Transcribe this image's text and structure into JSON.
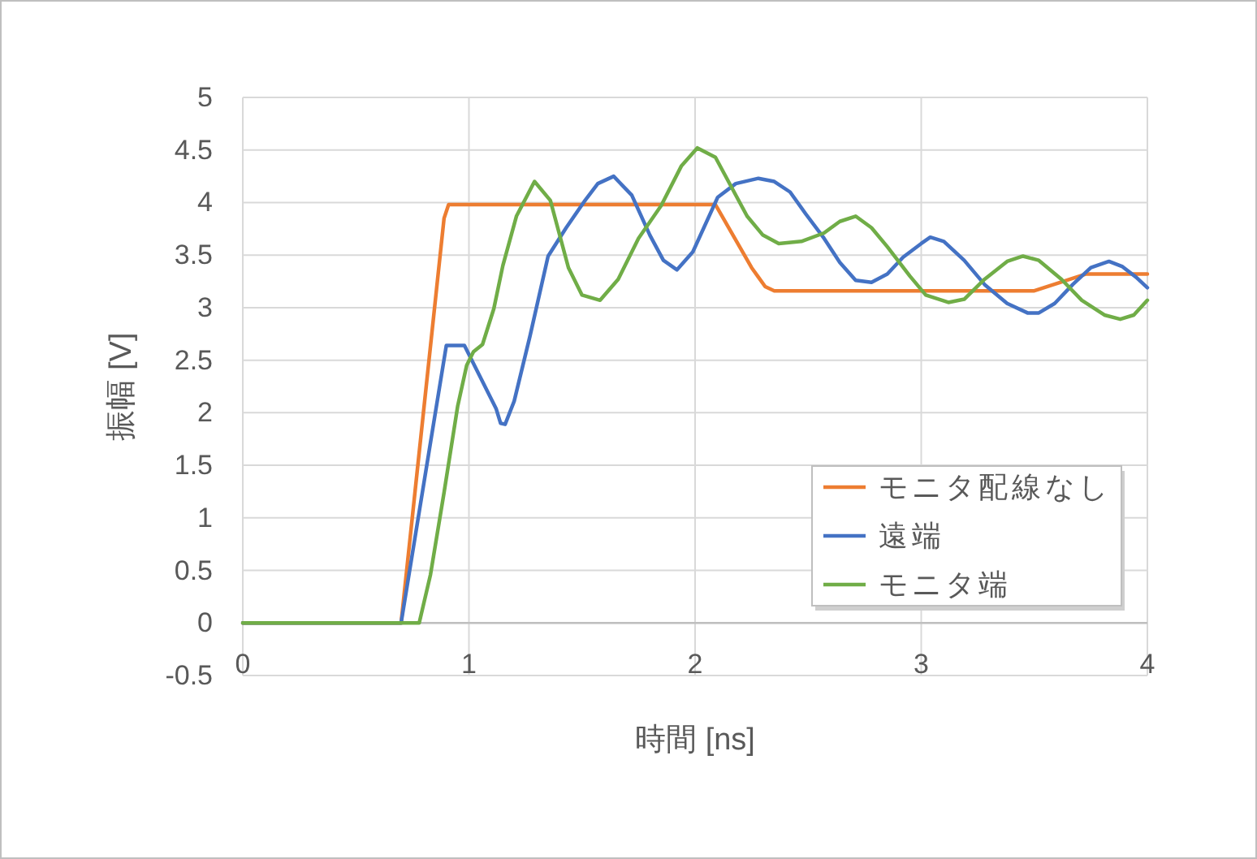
{
  "chart_data": {
    "type": "line",
    "xlabel": "時間 [ns]",
    "ylabel": "振幅 [V]",
    "xlim": [
      0,
      4
    ],
    "ylim": [
      -0.5,
      5
    ],
    "xticks": [
      0,
      1,
      2,
      3,
      4
    ],
    "yticks": [
      -0.5,
      0,
      0.5,
      1,
      1.5,
      2,
      2.5,
      3,
      3.5,
      4,
      4.5,
      5
    ],
    "grid": true,
    "legend": "bottom right",
    "marker": "none",
    "line_style": "solid",
    "series": [
      {
        "name": "モニタ配線なし",
        "color": "#ed7d31",
        "x": [
          0,
          0.7,
          0.89,
          0.91,
          2.09,
          2.25,
          2.28,
          2.31,
          2.35,
          3.5,
          3.6,
          3.73,
          4
        ],
        "values": [
          0,
          0,
          3.85,
          3.98,
          3.98,
          3.38,
          3.29,
          3.2,
          3.16,
          3.16,
          3.23,
          3.32,
          3.32
        ]
      },
      {
        "name": "遠端",
        "color": "#4472c4",
        "x": [
          0,
          0.7,
          0.9,
          0.98,
          1.12,
          1.14,
          1.16,
          1.2,
          1.27,
          1.35,
          1.43,
          1.51,
          1.57,
          1.64,
          1.72,
          1.8,
          1.86,
          1.92,
          1.99,
          2.1,
          2.18,
          2.28,
          2.35,
          2.42,
          2.49,
          2.57,
          2.64,
          2.71,
          2.78,
          2.85,
          2.92,
          3.0,
          3.04,
          3.1,
          3.19,
          3.28,
          3.38,
          3.47,
          3.52,
          3.59,
          3.67,
          3.75,
          3.83,
          3.89,
          3.95,
          4.0
        ],
        "values": [
          0,
          0,
          2.64,
          2.64,
          2.04,
          1.9,
          1.89,
          2.11,
          2.73,
          3.49,
          3.76,
          4.01,
          4.18,
          4.25,
          4.07,
          3.69,
          3.45,
          3.36,
          3.53,
          4.05,
          4.18,
          4.23,
          4.2,
          4.1,
          3.89,
          3.66,
          3.43,
          3.26,
          3.24,
          3.32,
          3.48,
          3.61,
          3.67,
          3.63,
          3.45,
          3.22,
          3.04,
          2.95,
          2.95,
          3.04,
          3.22,
          3.38,
          3.44,
          3.39,
          3.29,
          3.19
        ]
      },
      {
        "name": "モニタ端",
        "color": "#70ad47",
        "x": [
          0,
          0.78,
          0.83,
          0.89,
          0.95,
          0.99,
          1.02,
          1.06,
          1.11,
          1.15,
          1.21,
          1.29,
          1.36,
          1.44,
          1.5,
          1.58,
          1.66,
          1.75,
          1.85,
          1.94,
          2.01,
          2.09,
          2.16,
          2.23,
          2.3,
          2.37,
          2.47,
          2.57,
          2.64,
          2.71,
          2.78,
          2.85,
          2.95,
          3.02,
          3.12,
          3.19,
          3.28,
          3.38,
          3.45,
          3.52,
          3.62,
          3.71,
          3.81,
          3.88,
          3.94,
          4.0
        ],
        "values": [
          0,
          0,
          0.46,
          1.24,
          2.06,
          2.45,
          2.58,
          2.65,
          2.99,
          3.4,
          3.87,
          4.2,
          4.02,
          3.38,
          3.12,
          3.07,
          3.27,
          3.66,
          3.97,
          4.35,
          4.52,
          4.43,
          4.15,
          3.87,
          3.69,
          3.61,
          3.63,
          3.71,
          3.82,
          3.87,
          3.76,
          3.58,
          3.3,
          3.12,
          3.05,
          3.08,
          3.27,
          3.44,
          3.49,
          3.45,
          3.27,
          3.07,
          2.93,
          2.89,
          2.93,
          3.07
        ]
      }
    ]
  }
}
